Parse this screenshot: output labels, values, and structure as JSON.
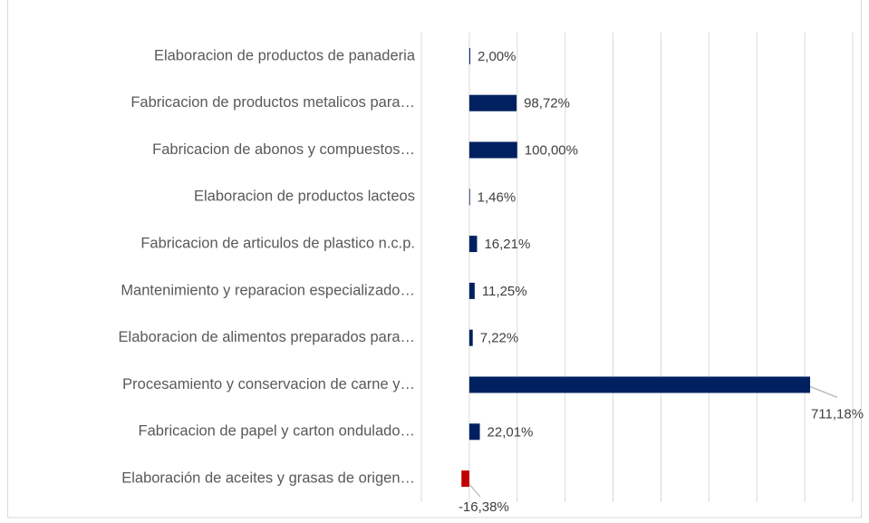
{
  "chart_data": {
    "type": "bar",
    "orientation": "horizontal",
    "categories": [
      "Elaboracion de productos de panaderia",
      "Fabricacion de productos metalicos para…",
      "Fabricacion de abonos y compuestos…",
      "Elaboracion de productos lacteos",
      "Fabricacion de articulos de plastico n.c.p.",
      "Mantenimiento y reparacion especializado…",
      "Elaboracion de alimentos preparados para…",
      "Procesamiento y conservacion de carne y…",
      "Fabricacion de papel y carton ondulado…",
      "Elaboración de aceites y grasas de origen…"
    ],
    "values": [
      2.0,
      98.72,
      100.0,
      1.46,
      16.21,
      11.25,
      7.22,
      711.18,
      22.01,
      -16.38
    ],
    "value_labels": [
      "2,00%",
      "98,72%",
      "100,00%",
      "1,46%",
      "16,21%",
      "11,25%",
      "7,22%",
      "711,18%",
      "22,01%",
      "-16,38%"
    ],
    "color": "#002060",
    "negative_color": "#c00000",
    "xlim": [
      -100,
      800
    ],
    "xticks": [
      -100,
      0,
      100,
      200,
      300,
      400,
      500,
      600,
      700,
      800
    ],
    "grid": true
  }
}
